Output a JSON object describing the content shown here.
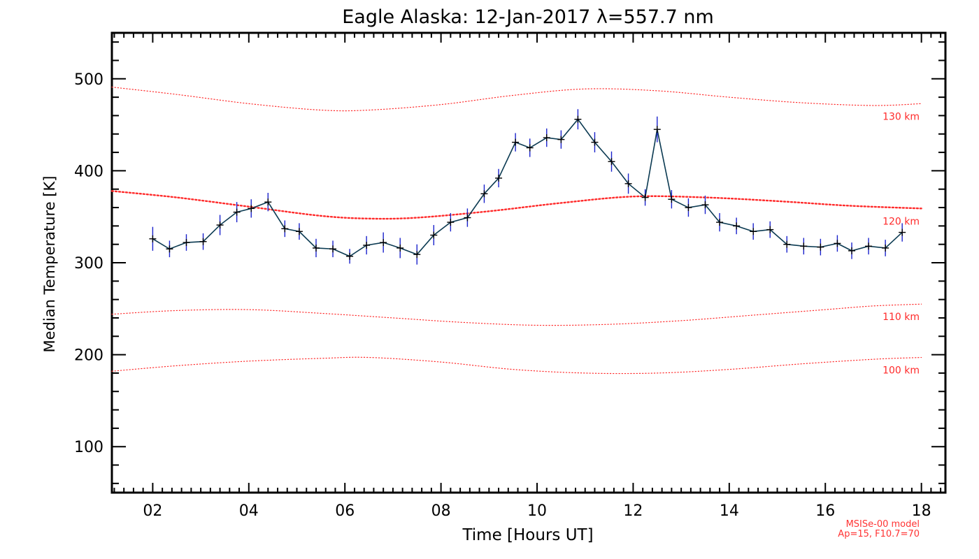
{
  "chart_data": {
    "type": "line",
    "title": "Eagle Alaska: 12-Jan-2017 λ=557.7 nm",
    "xlabel": "Time [Hours UT]",
    "ylabel": "Median Temperature [K]",
    "xlim": [
      1.15,
      18.5
    ],
    "ylim": [
      50,
      550
    ],
    "xticks": [
      2,
      4,
      6,
      8,
      10,
      12,
      14,
      16,
      18
    ],
    "xtick_labels": [
      "02",
      "04",
      "06",
      "08",
      "10",
      "12",
      "14",
      "16",
      "18"
    ],
    "yticks": [
      100,
      200,
      300,
      400,
      500
    ],
    "ytick_labels": [
      "100",
      "200",
      "300",
      "400",
      "500"
    ],
    "grid": false,
    "colors": {
      "measured_line": "#0b3a52",
      "error_bar": "#1a22cc",
      "marker": "#000000",
      "model": "#ff2a2a"
    },
    "series": [
      {
        "x": [
          2.0,
          2.35,
          2.7,
          3.05,
          3.4,
          3.75,
          4.05,
          4.4,
          4.75,
          5.05,
          5.4,
          5.75,
          6.1,
          6.45,
          6.8,
          7.15,
          7.5,
          7.85,
          8.2,
          8.55,
          8.9,
          9.2,
          9.55,
          9.85,
          10.2,
          10.5,
          10.85,
          11.2,
          11.55,
          11.9,
          12.25,
          12.5,
          12.8,
          13.15,
          13.5,
          13.8,
          14.15,
          14.5,
          14.85,
          15.2,
          15.55,
          15.9,
          16.25,
          16.55,
          16.9,
          17.25,
          17.6
        ],
        "y": [
          326,
          315,
          322,
          323,
          341,
          355,
          359,
          366,
          337,
          334,
          316,
          315,
          307,
          319,
          322,
          316,
          309,
          330,
          344,
          349,
          375,
          392,
          431,
          425,
          436,
          434,
          456,
          431,
          410,
          386,
          371,
          445,
          369,
          360,
          363,
          344,
          340,
          334,
          336,
          320,
          318,
          317,
          321,
          313,
          318,
          316,
          333
        ],
        "yerr": [
          13,
          9,
          9,
          9,
          11,
          11,
          10,
          10,
          9,
          9,
          10,
          9,
          8,
          10,
          11,
          11,
          11,
          11,
          10,
          10,
          10,
          10,
          10,
          10,
          10,
          10,
          11,
          11,
          11,
          11,
          9,
          14,
          10,
          10,
          10,
          10,
          9,
          9,
          9,
          9,
          9,
          9,
          9,
          9,
          9,
          9,
          10
        ]
      }
    ],
    "model_curves": [
      {
        "label": "130 km",
        "x": [
          1.15,
          2.5,
          4,
          5.5,
          6.5,
          8,
          9.5,
          11,
          12.5,
          14,
          15.5,
          17,
          18
        ],
        "y": [
          491,
          483,
          473,
          466,
          466,
          472,
          482,
          489,
          487,
          480,
          474,
          471,
          473
        ]
      },
      {
        "label": "120 km",
        "x": [
          1.15,
          2.5,
          4,
          5.5,
          6.5,
          7.5,
          9,
          10.5,
          12,
          13.5,
          15,
          16.5,
          18
        ],
        "y": [
          378,
          371,
          361,
          351,
          348,
          349,
          356,
          365,
          372,
          371,
          367,
          362,
          359
        ]
      },
      {
        "label": "110 km",
        "x": [
          1.15,
          2.5,
          4,
          5.5,
          7,
          8.5,
          10,
          11.5,
          13,
          14.5,
          16,
          17,
          18
        ],
        "y": [
          244,
          248,
          249,
          245,
          240,
          235,
          232,
          233,
          237,
          243,
          249,
          253,
          255
        ]
      },
      {
        "label": "100 km",
        "x": [
          1.15,
          2.5,
          4,
          5.5,
          6.5,
          8,
          9.5,
          11,
          12.5,
          14,
          15.5,
          17,
          18
        ],
        "y": [
          182,
          188,
          193,
          196,
          197,
          192,
          184,
          180,
          180,
          184,
          190,
          195,
          197
        ]
      }
    ],
    "footnote": [
      "MSISe-00 model",
      "Ap=15, F10.7=70"
    ]
  }
}
